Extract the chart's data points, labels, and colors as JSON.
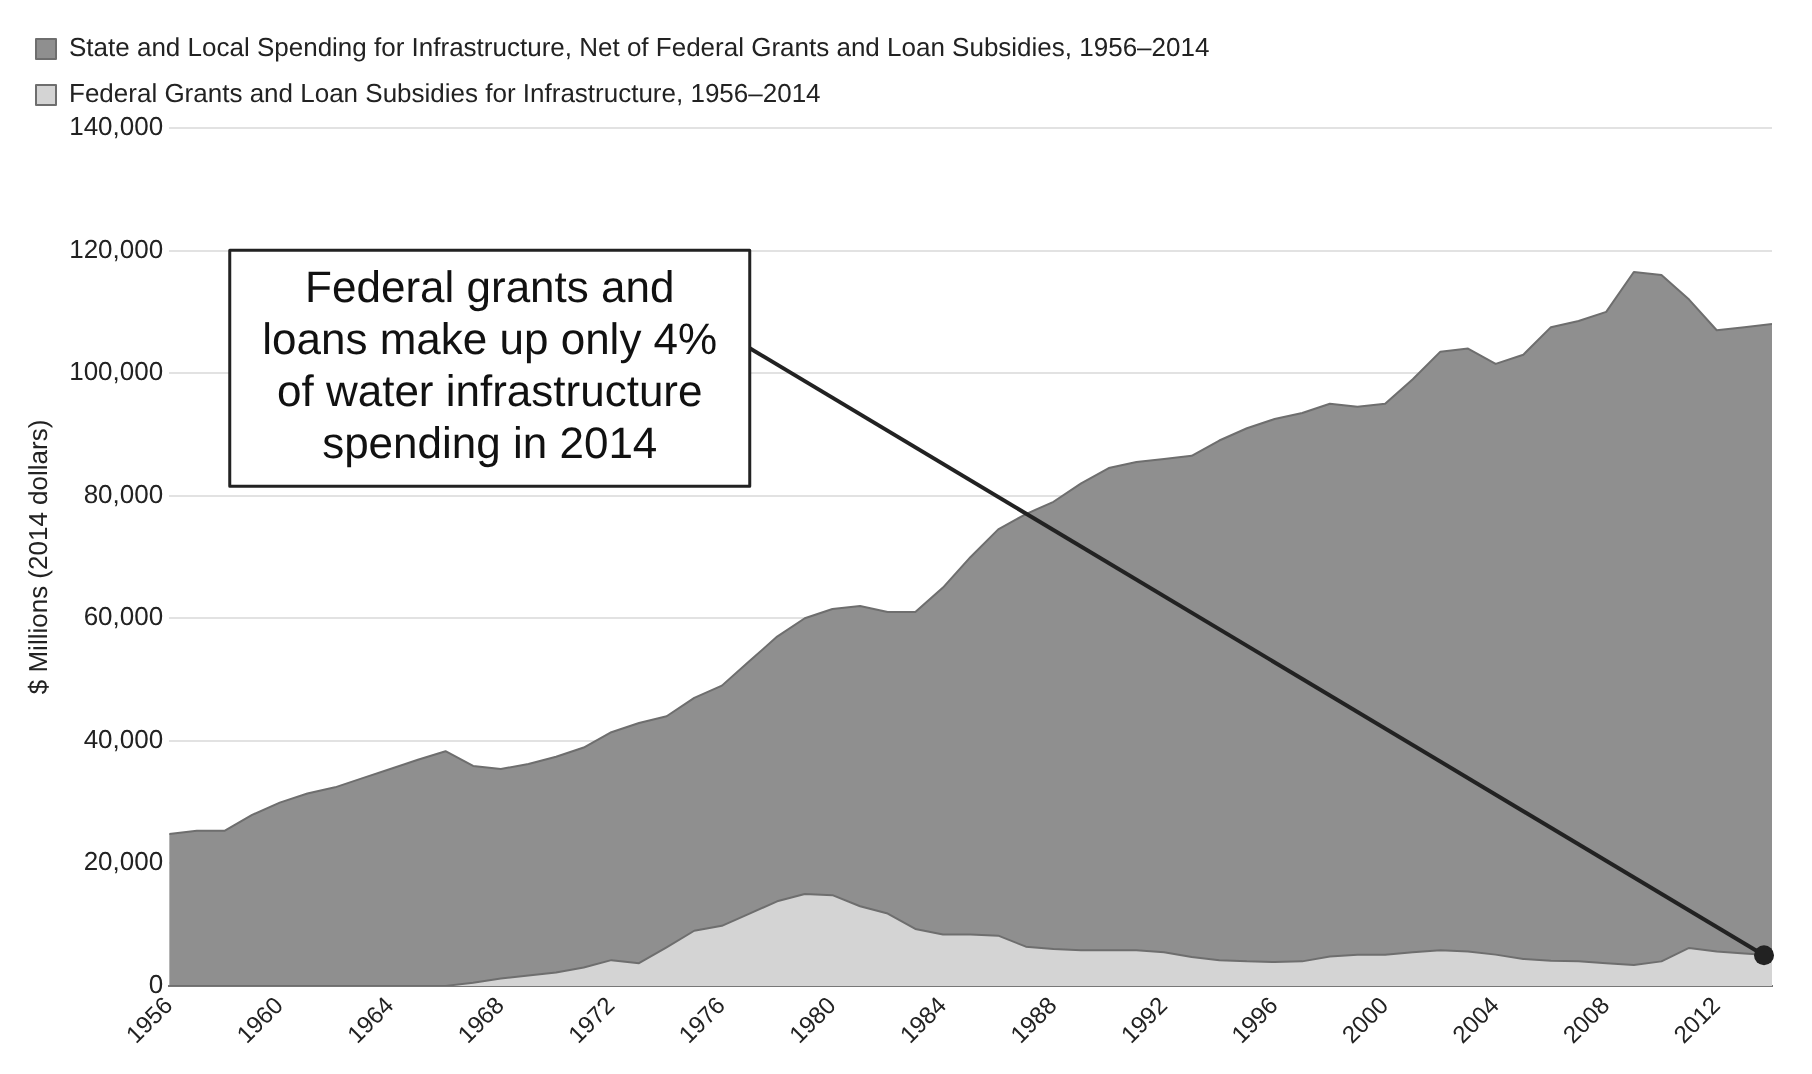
{
  "chart_data": {
    "type": "area",
    "stacked": true,
    "ylabel": "$ Millions (2014 dollars)",
    "x": [
      1956,
      1957,
      1958,
      1959,
      1960,
      1961,
      1962,
      1963,
      1964,
      1965,
      1966,
      1967,
      1968,
      1969,
      1970,
      1971,
      1972,
      1973,
      1974,
      1975,
      1976,
      1977,
      1978,
      1979,
      1980,
      1981,
      1982,
      1983,
      1984,
      1985,
      1986,
      1987,
      1988,
      1989,
      1990,
      1991,
      1992,
      1993,
      1994,
      1995,
      1996,
      1997,
      1998,
      1999,
      2000,
      2001,
      2002,
      2003,
      2004,
      2005,
      2006,
      2007,
      2008,
      2009,
      2010,
      2011,
      2012,
      2013,
      2014
    ],
    "series": [
      {
        "name": "Federal Grants and Loan Subsidies for Infrastructure, 1956–2014",
        "color": "#d4d4d4",
        "values": [
          0,
          0,
          0,
          0,
          0,
          0,
          0,
          0,
          0,
          0,
          0,
          500,
          1200,
          1700,
          2200,
          3000,
          4200,
          3700,
          6300,
          9000,
          9800,
          11800,
          13800,
          15000,
          14800,
          13000,
          11800,
          9300,
          8400,
          8400,
          8200,
          6400,
          6000,
          5800,
          5800,
          5800,
          5500,
          4700,
          4200,
          4000,
          3900,
          4000,
          4800,
          5100,
          5100,
          5500,
          5800,
          5600,
          5100,
          4400,
          4100,
          4000,
          3700,
          3400,
          4000,
          6200,
          5600,
          5300,
          5000
        ]
      },
      {
        "name": "State and Local Spending for Infrastructure, Net of Federal Grants and Loan Subsidies, 1956–2014",
        "color": "#8f8f8f",
        "values": [
          24800,
          25300,
          25300,
          27900,
          29900,
          31400,
          32400,
          33900,
          35400,
          36900,
          38300,
          35400,
          34200,
          34500,
          35200,
          35900,
          37200,
          39200,
          37700,
          38000,
          39200,
          41200,
          43200,
          45000,
          46700,
          49000,
          49200,
          51700,
          56600,
          61600,
          66300,
          70600,
          73000,
          76200,
          78700,
          79700,
          80500,
          81800,
          84800,
          87000,
          88600,
          89500,
          90200,
          89400,
          89900,
          93500,
          97700,
          98400,
          96400,
          98600,
          103400,
          104500,
          106300,
          113100,
          112000,
          105800,
          101400,
          102200,
          103000
        ]
      }
    ],
    "xlim": [
      1956,
      2014
    ],
    "xticks": [
      1956,
      1960,
      1964,
      1968,
      1972,
      1976,
      1980,
      1984,
      1988,
      1992,
      1996,
      2000,
      2004,
      2008,
      2012
    ],
    "ylim": [
      0,
      140000
    ],
    "yticks": [
      0,
      {
        "value": 20000,
        "label": "20,000"
      },
      {
        "value": 40000,
        "label": "40,000"
      },
      {
        "value": 60000,
        "label": "60,000"
      },
      {
        "value": 80000,
        "label": "80,000"
      },
      {
        "value": 100000,
        "label": "100,000"
      },
      {
        "value": 120000,
        "label": "120,000"
      },
      {
        "value": 140000,
        "label": "140,000"
      }
    ],
    "grid": "y",
    "legend": "top left",
    "annotations": [
      {
        "text": "Federal grants and loans make up only 4% of water infrastructure spending in 2014",
        "x": 2014,
        "y": 5000
      }
    ]
  }
}
